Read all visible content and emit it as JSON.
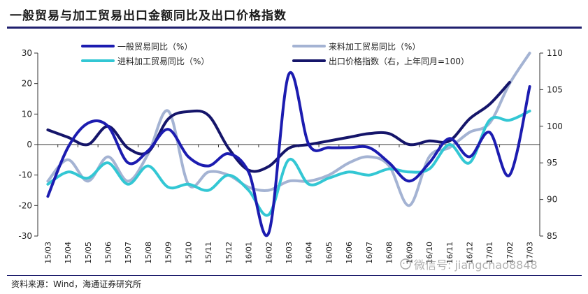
{
  "title": "一般贸易与加工贸易出口金额同比及出口价格指数",
  "source": "资料来源：Wind，海通证券研究所",
  "watermark": "微信号: jiangchao8848",
  "chart_data": {
    "type": "line",
    "categories": [
      "15/03",
      "15/04",
      "15/05",
      "15/06",
      "15/07",
      "15/08",
      "15/09",
      "15/10",
      "15/11",
      "15/12",
      "16/01",
      "16/02",
      "16/03",
      "16/04",
      "16/05",
      "16/06",
      "16/07",
      "16/08",
      "16/09",
      "16/10",
      "16/11",
      "16/12",
      "17/01",
      "17/02",
      "17/03"
    ],
    "y_left": {
      "min": -30,
      "max": 30,
      "ticks": [
        -30,
        -20,
        -10,
        0,
        10,
        20,
        30
      ]
    },
    "y_right": {
      "min": 85,
      "max": 110,
      "ticks": [
        85,
        90,
        95,
        100,
        105,
        110
      ]
    },
    "series": [
      {
        "name": "一般贸易同比（%）",
        "axis": "left",
        "color": "#1c1cb0",
        "width": 4,
        "values": [
          -17,
          -1,
          7,
          6,
          -6,
          -2,
          5,
          -4,
          -7,
          -3,
          -9,
          -29,
          23,
          0,
          -1,
          -1,
          -1,
          -6,
          -12,
          -6,
          2,
          -4,
          4,
          -10,
          19
        ]
      },
      {
        "name": "来料加工贸易同比（%）",
        "axis": "left",
        "color": "#a4b3d3",
        "width": 4,
        "values": [
          -12,
          -5,
          -12,
          -4,
          -12,
          -3,
          11,
          -13,
          -9,
          -10,
          -14,
          -15,
          -12,
          -12,
          -10,
          -6,
          -4,
          -7,
          -20,
          -4,
          -1,
          4,
          7,
          20,
          30
        ]
      },
      {
        "name": "进料加工贸易同比（%）",
        "axis": "left",
        "color": "#33c7d4",
        "width": 4,
        "values": [
          -13,
          -9,
          -11,
          -6,
          -13,
          -7,
          -14,
          -13,
          -15,
          -10,
          -15,
          -23,
          -5,
          -13,
          -11,
          -9,
          -10,
          -8,
          -9,
          -8,
          0,
          -6,
          8,
          8,
          11
        ]
      },
      {
        "name": "出口价格指数（右，上年同月=100）",
        "axis": "right",
        "color": "#15156a",
        "width": 4,
        "values": [
          99.5,
          98.5,
          97.5,
          100,
          97,
          96.5,
          101,
          102,
          101.5,
          97,
          94,
          94.5,
          97,
          97.5,
          98,
          98.5,
          99,
          99,
          97.5,
          98,
          98,
          101,
          103,
          106,
          null
        ]
      }
    ]
  }
}
